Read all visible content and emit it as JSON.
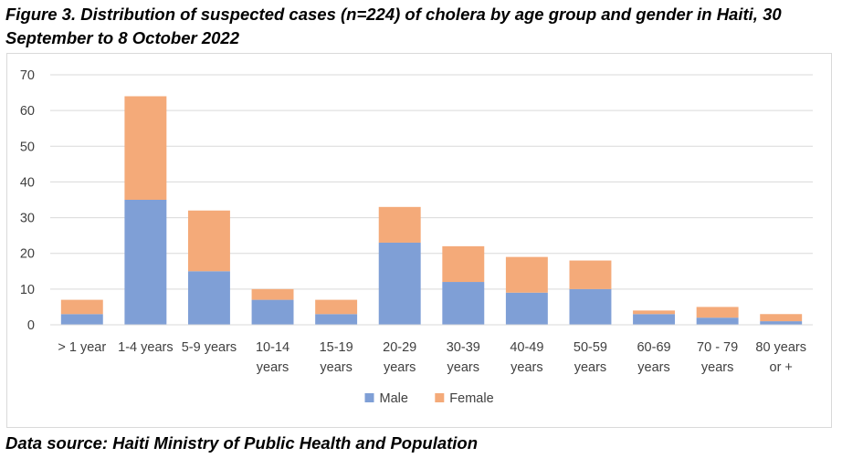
{
  "header": {
    "title": "Figure 3. Distribution of suspected cases (n=224) of cholera by age group and gender in Haiti, 30 September to 8 October 2022"
  },
  "footer": {
    "source": "Data source: Haiti Ministry of Public Health and Population"
  },
  "chart_data": {
    "type": "bar",
    "stacked": true,
    "title": "Figure 3. Distribution of suspected cases (n=224) of cholera by age group and gender in Haiti, 30 September to 8 October 2022",
    "categories": [
      [
        "> 1 year"
      ],
      [
        "1-4 years"
      ],
      [
        "5-9 years"
      ],
      [
        "10-14",
        "years"
      ],
      [
        "15-19",
        "years"
      ],
      [
        "20-29",
        "years"
      ],
      [
        "30-39",
        "years"
      ],
      [
        "40-49",
        "years"
      ],
      [
        "50-59",
        "years"
      ],
      [
        "60-69",
        "years"
      ],
      [
        "70 - 79",
        "years"
      ],
      [
        "80 years",
        "or +"
      ]
    ],
    "series": [
      {
        "name": "Male",
        "color": "#7f9fd6",
        "values": [
          3,
          35,
          15,
          7,
          3,
          23,
          12,
          9,
          10,
          3,
          2,
          1
        ]
      },
      {
        "name": "Female",
        "color": "#f4aa79",
        "values": [
          4,
          29,
          17,
          3,
          4,
          10,
          10,
          10,
          8,
          1,
          3,
          2
        ]
      }
    ],
    "ylim": [
      0,
      70
    ],
    "yticks": [
      0,
      10,
      20,
      30,
      40,
      50,
      60,
      70
    ],
    "grid": true,
    "legend": "bottom"
  }
}
